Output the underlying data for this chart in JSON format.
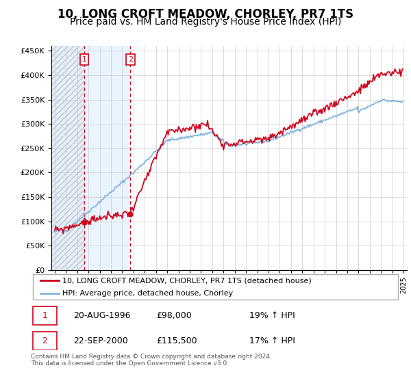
{
  "title": "10, LONG CROFT MEADOW, CHORLEY, PR7 1TS",
  "subtitle": "Price paid vs. HM Land Registry's House Price Index (HPI)",
  "ylim": [
    0,
    460000
  ],
  "yticks": [
    0,
    50000,
    100000,
    150000,
    200000,
    250000,
    300000,
    350000,
    400000,
    450000
  ],
  "ytick_labels": [
    "£0",
    "£50K",
    "£100K",
    "£150K",
    "£200K",
    "£250K",
    "£300K",
    "£350K",
    "£400K",
    "£450K"
  ],
  "xlim_start": 1993.7,
  "xlim_end": 2025.3,
  "hpi_color": "#7fb3e0",
  "price_color": "#d0021b",
  "marker1_x": 1996.63,
  "marker1_y": 98000,
  "marker2_x": 2000.72,
  "marker2_y": 115500,
  "legend_label1": "10, LONG CROFT MEADOW, CHORLEY, PR7 1TS (detached house)",
  "legend_label2": "HPI: Average price, detached house, Chorley",
  "table_row1": [
    "1",
    "20-AUG-1996",
    "£98,000",
    "19% ↑ HPI"
  ],
  "table_row2": [
    "2",
    "22-SEP-2000",
    "£115,500",
    "17% ↑ HPI"
  ],
  "footnote": "Contains HM Land Registry data © Crown copyright and database right 2024.\nThis data is licensed under the Open Government Licence v3.0.",
  "grid_color": "#cccccc",
  "hatch_color": "#d8e4f0",
  "shade_color": "#ddeeff",
  "title_fontsize": 12,
  "subtitle_fontsize": 10
}
